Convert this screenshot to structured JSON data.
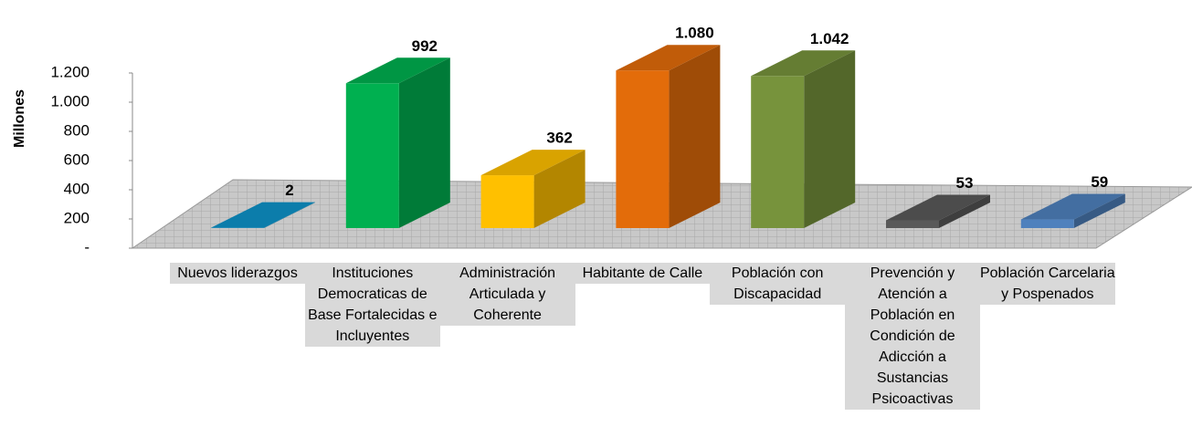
{
  "chart_data": {
    "type": "bar3d",
    "y_axis_label": "Millones",
    "categories": [
      "Nuevos liderazgos",
      "Instituciones Democraticas de Base Fortalecidas e Incluyentes",
      "Administración Articulada y Coherente",
      "Habitante de Calle",
      "Población con Discapacidad",
      "Prevención y Atención a Población en Condición de Adicción a Sustancias Psicoactivas",
      "Población Carcelaria y Pospenados"
    ],
    "values": [
      2,
      992,
      362,
      1080,
      1042,
      53,
      59
    ],
    "value_labels": [
      "2",
      "992",
      "362",
      "1.080",
      "1.042",
      "53",
      "59"
    ],
    "colors": [
      "#0e93c9",
      "#00b050",
      "#ffc000",
      "#e36c0a",
      "#77933c",
      "#595959",
      "#4f81bd"
    ],
    "ylim": [
      0,
      1200
    ],
    "yticks": [
      {
        "value": 0,
        "label": "-"
      },
      200,
      400,
      600,
      800,
      {
        "value": 1000,
        "label": "1.000"
      },
      {
        "value": 1200,
        "label": "1.200"
      }
    ]
  }
}
